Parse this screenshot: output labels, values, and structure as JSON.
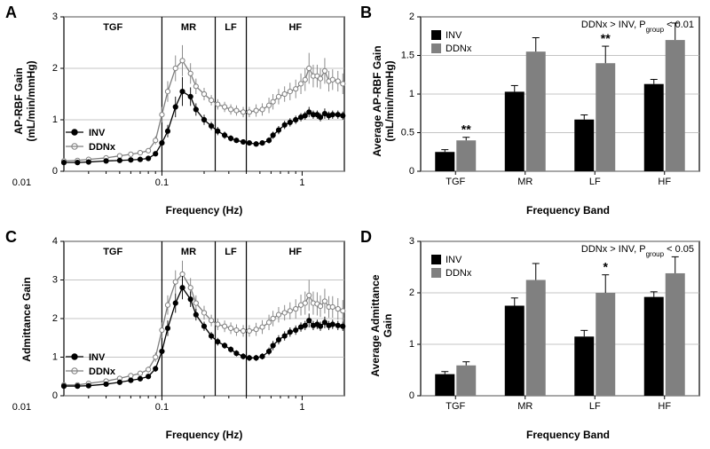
{
  "colors": {
    "bg": "#ffffff",
    "axis": "#000000",
    "grid": "#b0b0b0",
    "inv_line": "#000000",
    "inv_marker_fill": "#000000",
    "ddnx_line": "#7f7f7f",
    "ddnx_marker_fill": "#ffffff",
    "ddnx_marker_stroke": "#7f7f7f",
    "inv_bar": "#000000",
    "ddnx_bar": "#808080",
    "errbar": "#000000"
  },
  "panel_labels": {
    "A": "A",
    "B": "B",
    "C": "C",
    "D": "D"
  },
  "bands": [
    "TGF",
    "MR",
    "LF",
    "HF"
  ],
  "band_div_freq": [
    0.1,
    0.24,
    0.4,
    0.7
  ],
  "left_x": {
    "min": 0.02,
    "max": 2.0,
    "label": "Frequency (Hz)",
    "ticks": [
      0.01,
      0.1,
      1
    ],
    "labels": [
      "0.01",
      "0.1",
      "1"
    ]
  },
  "A": {
    "ylabel": "AP-RBF Gain\n(mL/min/mmHg)",
    "ylim": [
      0,
      3
    ],
    "ytick_step": 1,
    "legend": {
      "inv": "INV",
      "ddnx": "DDNx"
    },
    "series": {
      "inv": {
        "x": [
          0.02,
          0.025,
          0.03,
          0.04,
          0.05,
          0.06,
          0.07,
          0.08,
          0.09,
          0.1,
          0.11,
          0.125,
          0.14,
          0.16,
          0.175,
          0.2,
          0.225,
          0.25,
          0.28,
          0.31,
          0.34,
          0.38,
          0.42,
          0.47,
          0.52,
          0.58,
          0.62,
          0.68,
          0.75,
          0.82,
          0.9,
          0.98,
          1.05,
          1.12,
          1.2,
          1.28,
          1.35,
          1.45,
          1.55,
          1.65,
          1.8,
          1.95
        ],
        "y": [
          0.17,
          0.17,
          0.18,
          0.2,
          0.21,
          0.22,
          0.23,
          0.25,
          0.34,
          0.55,
          0.78,
          1.25,
          1.55,
          1.45,
          1.2,
          1.0,
          0.88,
          0.78,
          0.7,
          0.64,
          0.6,
          0.57,
          0.55,
          0.53,
          0.55,
          0.6,
          0.7,
          0.8,
          0.9,
          0.95,
          1.0,
          1.05,
          1.08,
          1.15,
          1.1,
          1.1,
          1.05,
          1.12,
          1.08,
          1.1,
          1.1,
          1.08
        ],
        "err": [
          0.02,
          0.02,
          0.02,
          0.02,
          0.03,
          0.03,
          0.03,
          0.03,
          0.04,
          0.08,
          0.12,
          0.2,
          0.28,
          0.18,
          0.12,
          0.1,
          0.08,
          0.08,
          0.07,
          0.06,
          0.05,
          0.05,
          0.05,
          0.05,
          0.05,
          0.06,
          0.07,
          0.08,
          0.08,
          0.08,
          0.08,
          0.08,
          0.08,
          0.1,
          0.08,
          0.08,
          0.08,
          0.1,
          0.08,
          0.08,
          0.08,
          0.08
        ]
      },
      "ddnx": {
        "x": [
          0.02,
          0.025,
          0.03,
          0.04,
          0.05,
          0.06,
          0.07,
          0.08,
          0.09,
          0.1,
          0.11,
          0.125,
          0.14,
          0.16,
          0.175,
          0.2,
          0.225,
          0.25,
          0.28,
          0.31,
          0.34,
          0.38,
          0.42,
          0.47,
          0.52,
          0.58,
          0.62,
          0.68,
          0.75,
          0.82,
          0.9,
          0.98,
          1.05,
          1.12,
          1.2,
          1.28,
          1.35,
          1.45,
          1.55,
          1.65,
          1.8,
          1.95
        ],
        "y": [
          0.2,
          0.21,
          0.23,
          0.26,
          0.3,
          0.33,
          0.36,
          0.4,
          0.6,
          1.1,
          1.55,
          2.0,
          2.15,
          1.9,
          1.65,
          1.5,
          1.38,
          1.3,
          1.25,
          1.2,
          1.18,
          1.15,
          1.15,
          1.18,
          1.2,
          1.28,
          1.35,
          1.45,
          1.5,
          1.55,
          1.6,
          1.7,
          1.78,
          2.0,
          1.85,
          1.85,
          1.8,
          1.95,
          1.75,
          1.78,
          1.75,
          1.7
        ],
        "err": [
          0.03,
          0.03,
          0.03,
          0.03,
          0.05,
          0.05,
          0.05,
          0.05,
          0.08,
          0.15,
          0.2,
          0.25,
          0.3,
          0.2,
          0.15,
          0.12,
          0.1,
          0.1,
          0.1,
          0.1,
          0.1,
          0.1,
          0.1,
          0.12,
          0.12,
          0.15,
          0.15,
          0.15,
          0.15,
          0.17,
          0.18,
          0.2,
          0.22,
          0.3,
          0.22,
          0.22,
          0.2,
          0.25,
          0.2,
          0.2,
          0.2,
          0.2
        ]
      }
    }
  },
  "C": {
    "ylabel": "Admittance Gain",
    "ylim": [
      0,
      4
    ],
    "ytick_step": 1,
    "legend": {
      "inv": "INV",
      "ddnx": "DDNx"
    },
    "series": {
      "inv": {
        "x": [
          0.02,
          0.025,
          0.03,
          0.04,
          0.05,
          0.06,
          0.07,
          0.08,
          0.09,
          0.1,
          0.11,
          0.125,
          0.14,
          0.16,
          0.175,
          0.2,
          0.225,
          0.25,
          0.28,
          0.31,
          0.34,
          0.38,
          0.42,
          0.47,
          0.52,
          0.58,
          0.62,
          0.68,
          0.75,
          0.82,
          0.9,
          0.98,
          1.05,
          1.12,
          1.2,
          1.28,
          1.35,
          1.45,
          1.55,
          1.65,
          1.8,
          1.95
        ],
        "y": [
          0.25,
          0.25,
          0.26,
          0.3,
          0.35,
          0.4,
          0.44,
          0.5,
          0.7,
          1.15,
          1.75,
          2.4,
          2.8,
          2.5,
          2.1,
          1.8,
          1.55,
          1.4,
          1.3,
          1.2,
          1.1,
          1.02,
          0.98,
          0.98,
          1.02,
          1.15,
          1.3,
          1.45,
          1.55,
          1.65,
          1.7,
          1.78,
          1.82,
          1.95,
          1.82,
          1.85,
          1.8,
          1.9,
          1.82,
          1.85,
          1.82,
          1.8
        ],
        "err": [
          0.03,
          0.03,
          0.03,
          0.03,
          0.05,
          0.05,
          0.05,
          0.06,
          0.08,
          0.15,
          0.2,
          0.25,
          0.3,
          0.2,
          0.15,
          0.12,
          0.1,
          0.1,
          0.08,
          0.08,
          0.08,
          0.08,
          0.08,
          0.08,
          0.08,
          0.1,
          0.12,
          0.12,
          0.12,
          0.12,
          0.12,
          0.12,
          0.12,
          0.18,
          0.12,
          0.12,
          0.12,
          0.15,
          0.12,
          0.12,
          0.12,
          0.12
        ]
      },
      "ddnx": {
        "x": [
          0.02,
          0.025,
          0.03,
          0.04,
          0.05,
          0.06,
          0.07,
          0.08,
          0.09,
          0.1,
          0.11,
          0.125,
          0.14,
          0.16,
          0.175,
          0.2,
          0.225,
          0.25,
          0.28,
          0.31,
          0.34,
          0.38,
          0.42,
          0.47,
          0.52,
          0.58,
          0.62,
          0.68,
          0.75,
          0.82,
          0.9,
          0.98,
          1.05,
          1.12,
          1.2,
          1.28,
          1.35,
          1.45,
          1.55,
          1.65,
          1.8,
          1.95
        ],
        "y": [
          0.28,
          0.28,
          0.32,
          0.38,
          0.45,
          0.52,
          0.58,
          0.68,
          1.0,
          1.7,
          2.35,
          2.95,
          3.15,
          2.8,
          2.4,
          2.15,
          1.95,
          1.85,
          1.8,
          1.75,
          1.7,
          1.68,
          1.68,
          1.72,
          1.78,
          1.9,
          2.0,
          2.1,
          2.15,
          2.2,
          2.25,
          2.35,
          2.4,
          2.6,
          2.4,
          2.38,
          2.32,
          2.45,
          2.3,
          2.3,
          2.25,
          2.2
        ],
        "err": [
          0.04,
          0.04,
          0.04,
          0.05,
          0.06,
          0.06,
          0.07,
          0.08,
          0.12,
          0.2,
          0.25,
          0.3,
          0.35,
          0.25,
          0.2,
          0.18,
          0.15,
          0.15,
          0.15,
          0.15,
          0.15,
          0.15,
          0.15,
          0.17,
          0.18,
          0.2,
          0.2,
          0.2,
          0.2,
          0.22,
          0.25,
          0.27,
          0.3,
          0.4,
          0.3,
          0.3,
          0.28,
          0.32,
          0.28,
          0.28,
          0.28,
          0.28
        ]
      }
    }
  },
  "B": {
    "ylabel": "Average AP-RBF Gain\n(mL/min/mmHg)",
    "xlabel": "Frequency Band",
    "annot": "DDNx > INV, P",
    "annot_sub": "group",
    "annot2": " < 0.01",
    "ylim": [
      0,
      2
    ],
    "ytick_step": 0.5,
    "legend": {
      "inv": "INV",
      "ddnx": "DDNx"
    },
    "cats": [
      "TGF",
      "MR",
      "LF",
      "HF"
    ],
    "inv": {
      "y": [
        0.25,
        1.03,
        0.67,
        1.13
      ],
      "err": [
        0.03,
        0.08,
        0.06,
        0.06
      ]
    },
    "ddnx": {
      "y": [
        0.4,
        1.55,
        1.4,
        1.7
      ],
      "err": [
        0.04,
        0.18,
        0.22,
        0.22
      ]
    },
    "sig": {
      "TGF": "**",
      "LF": "**"
    }
  },
  "D": {
    "ylabel": "Average Admittance\nGain",
    "xlabel": "Frequency Band",
    "annot": "DDNx > INV, P",
    "annot_sub": "group",
    "annot2": " < 0.05",
    "ylim": [
      0,
      3
    ],
    "ytick_step": 1,
    "legend": {
      "inv": "INV",
      "ddnx": "DDNx"
    },
    "cats": [
      "TGF",
      "MR",
      "LF",
      "HF"
    ],
    "inv": {
      "y": [
        0.42,
        1.75,
        1.15,
        1.92
      ],
      "err": [
        0.05,
        0.15,
        0.12,
        0.1
      ]
    },
    "ddnx": {
      "y": [
        0.59,
        2.25,
        2.0,
        2.38
      ],
      "err": [
        0.07,
        0.32,
        0.35,
        0.32
      ]
    },
    "sig": {
      "LF": "*"
    }
  }
}
